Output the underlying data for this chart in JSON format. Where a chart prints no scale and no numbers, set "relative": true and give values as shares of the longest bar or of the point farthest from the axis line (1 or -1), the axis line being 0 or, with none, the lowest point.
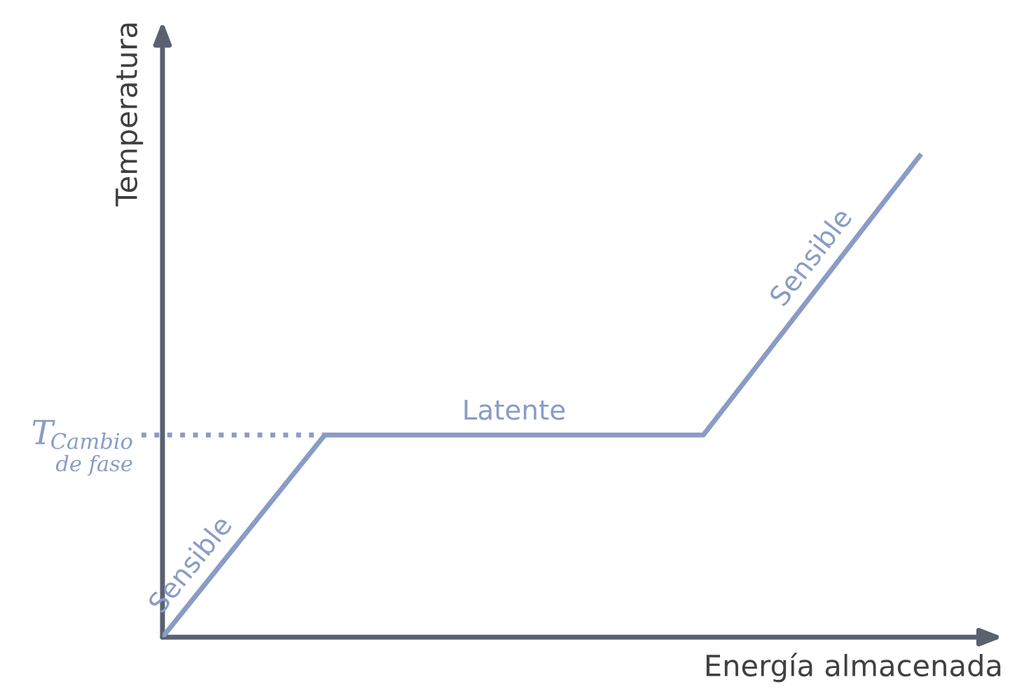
{
  "chart_data": {
    "type": "line",
    "relative": true,
    "xlabel": "Energía almacenada",
    "ylabel": "Temperatura",
    "categories": [
      null,
      null,
      null,
      null,
      null,
      null,
      null,
      null,
      null,
      null,
      null,
      null,
      null,
      null,
      null
    ],
    "series": [
      {
        "color": "#8a9cc6",
        "values": [
          0,
          0.14,
          0.28,
          0.42,
          0.42,
          0.42,
          0.42,
          0.42,
          0.42,
          0.42,
          0.42,
          0.565,
          0.71,
          0.855,
          1
        ]
      }
    ],
    "ref_lines": [
      {
        "axis": "y",
        "value": 0.42,
        "label": "T$_{Cambio de fase}$",
        "color": "#8a9cc6",
        "line_style": "dotted"
      }
    ],
    "annotations": [
      "Sensible",
      "Latente",
      "Sensible"
    ],
    "tick_labels": false,
    "marker": "none",
    "line_style": "solid"
  }
}
